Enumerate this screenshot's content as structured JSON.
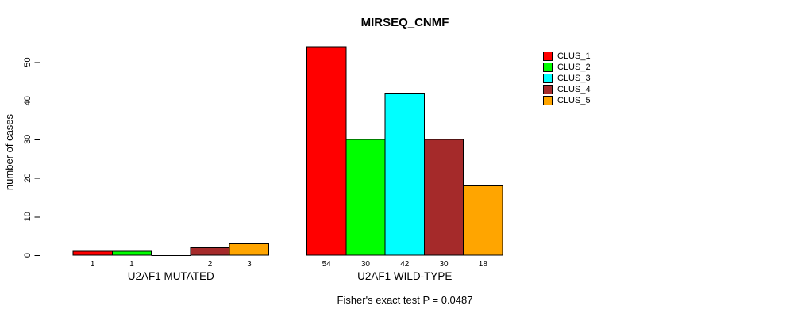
{
  "title": "MIRSEQ_CNMF",
  "footer": "Fisher's exact test P = 0.0487",
  "y_axis": {
    "label": "number of cases",
    "ticks": [
      0,
      10,
      20,
      30,
      40,
      50
    ]
  },
  "legend": {
    "items": [
      {
        "label": "CLUS_1",
        "color": "#FF0000"
      },
      {
        "label": "CLUS_2",
        "color": "#00FF00"
      },
      {
        "label": "CLUS_3",
        "color": "#00FFFF"
      },
      {
        "label": "CLUS_4",
        "color": "#A52A2A"
      },
      {
        "label": "CLUS_5",
        "color": "#FFA500"
      }
    ]
  },
  "chart_data": {
    "type": "bar",
    "title": "MIRSEQ_CNMF",
    "xlabel": "",
    "ylabel": "number of cases",
    "ylim": [
      0,
      54
    ],
    "yticks": [
      0,
      10,
      20,
      30,
      40,
      50
    ],
    "grid": false,
    "legend_position": "right",
    "series_names": [
      "CLUS_1",
      "CLUS_2",
      "CLUS_3",
      "CLUS_4",
      "CLUS_5"
    ],
    "series_colors": [
      "#FF0000",
      "#00FF00",
      "#00FFFF",
      "#A52A2A",
      "#FFA500"
    ],
    "groups": [
      {
        "label": "U2AF1 MUTATED",
        "values": [
          1,
          1,
          0,
          2,
          3
        ],
        "value_labels": [
          "1",
          "1",
          "",
          "2",
          "3"
        ]
      },
      {
        "label": "U2AF1 WILD-TYPE",
        "values": [
          54,
          30,
          42,
          30,
          18
        ],
        "value_labels": [
          "54",
          "30",
          "42",
          "30",
          "18"
        ]
      }
    ],
    "annotation": "Fisher's exact test P = 0.0487"
  }
}
